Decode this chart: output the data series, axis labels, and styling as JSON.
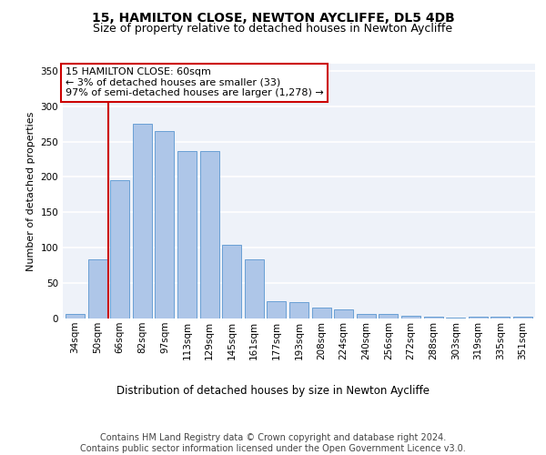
{
  "title1": "15, HAMILTON CLOSE, NEWTON AYCLIFFE, DL5 4DB",
  "title2": "Size of property relative to detached houses in Newton Aycliffe",
  "xlabel": "Distribution of detached houses by size in Newton Aycliffe",
  "ylabel": "Number of detached properties",
  "categories": [
    "34sqm",
    "50sqm",
    "66sqm",
    "82sqm",
    "97sqm",
    "113sqm",
    "129sqm",
    "145sqm",
    "161sqm",
    "177sqm",
    "193sqm",
    "208sqm",
    "224sqm",
    "240sqm",
    "256sqm",
    "272sqm",
    "288sqm",
    "303sqm",
    "319sqm",
    "335sqm",
    "351sqm"
  ],
  "values": [
    6,
    83,
    196,
    275,
    265,
    236,
    236,
    104,
    83,
    25,
    23,
    15,
    13,
    6,
    6,
    4,
    3,
    1,
    3,
    2,
    3
  ],
  "bar_color": "#aec6e8",
  "bar_edge_color": "#5a96d0",
  "vline_color": "#cc0000",
  "annotation_text": "15 HAMILTON CLOSE: 60sqm\n← 3% of detached houses are smaller (33)\n97% of semi-detached houses are larger (1,278) →",
  "annotation_box_color": "#ffffff",
  "annotation_box_edge_color": "#cc0000",
  "ylim": [
    0,
    360
  ],
  "yticks": [
    0,
    50,
    100,
    150,
    200,
    250,
    300,
    350
  ],
  "bg_color": "#eef2f9",
  "grid_color": "#ffffff",
  "footer": "Contains HM Land Registry data © Crown copyright and database right 2024.\nContains public sector information licensed under the Open Government Licence v3.0.",
  "title1_fontsize": 10,
  "title2_fontsize": 9,
  "xlabel_fontsize": 8.5,
  "ylabel_fontsize": 8,
  "tick_fontsize": 7.5,
  "annotation_fontsize": 8,
  "footer_fontsize": 7
}
